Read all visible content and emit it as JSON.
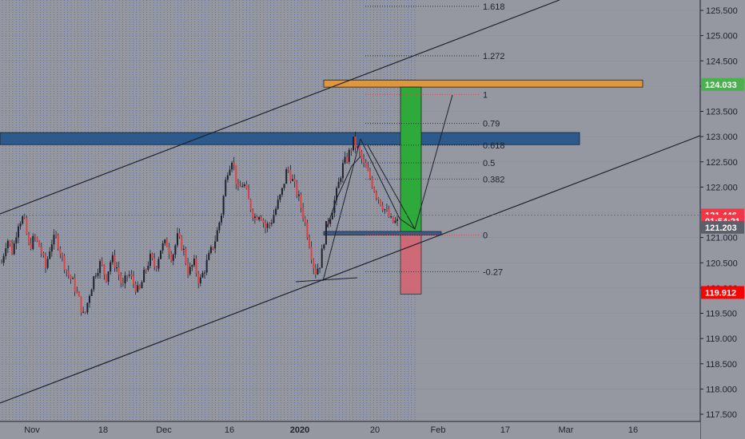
{
  "chart_data": {
    "type": "candlestick",
    "title": "",
    "xlabel": "",
    "ylabel": "",
    "ylim": [
      117.45,
      125.75
    ],
    "y_ticks": [
      "125.500",
      "125.000",
      "124.500",
      "124.000",
      "123.500",
      "123.000",
      "122.500",
      "122.000",
      "121.500",
      "121.000",
      "120.500",
      "120.000",
      "119.500",
      "119.000",
      "118.500",
      "118.000",
      "117.500"
    ],
    "x_ticks": [
      "Nov",
      "18",
      "Dec",
      "16",
      "2020",
      "20",
      "Feb",
      "17",
      "Mar",
      "16"
    ],
    "price_badges": [
      {
        "label": "124.033",
        "value": 124.033,
        "color": "#4caf50"
      },
      {
        "label": "121.446",
        "value": 121.446,
        "color": "#f23645"
      },
      {
        "label": "01:54:21",
        "value": 121.325,
        "color": "#f23645"
      },
      {
        "label": "121.203",
        "value": 121.203,
        "color": "#5d606b"
      },
      {
        "label": "119.912",
        "value": 119.912,
        "color": "#ff0000"
      }
    ],
    "fib_levels": [
      {
        "label": "1.618",
        "value": 125.58,
        "color": "#1e222d"
      },
      {
        "label": "1.272",
        "value": 124.6,
        "color": "#1e222d"
      },
      {
        "label": "1",
        "value": 123.83,
        "color": "#f23645"
      },
      {
        "label": "0.79",
        "value": 123.26,
        "color": "#1e222d"
      },
      {
        "label": "0.618",
        "value": 122.83,
        "color": "#1e222d"
      },
      {
        "label": "0.5",
        "value": 122.48,
        "color": "#1e222d"
      },
      {
        "label": "0.382",
        "value": 122.16,
        "color": "#1e222d"
      },
      {
        "label": "0",
        "value": 121.05,
        "color": "#f23645"
      },
      {
        "label": "-0.27",
        "value": 120.32,
        "color": "#1e222d"
      }
    ],
    "candles": {
      "start": 120.5,
      "path": [
        120.5,
        121.0,
        120.7,
        121.3,
        121.4,
        120.8,
        121.0,
        120.8,
        120.4,
        120.9,
        121.0,
        120.6,
        120.3,
        120.1,
        119.8,
        119.4,
        119.9,
        120.3,
        120.5,
        120.2,
        120.6,
        120.4,
        120.0,
        120.3,
        120.1,
        119.9,
        120.3,
        120.6,
        120.4,
        120.8,
        120.9,
        120.6,
        121.0,
        120.8,
        120.3,
        120.5,
        120.1,
        120.4,
        120.7,
        121.0,
        121.5,
        122.3,
        122.6,
        121.9,
        122.1,
        121.7,
        121.4,
        121.5,
        121.2,
        121.3,
        121.6,
        121.9,
        122.4,
        122.1,
        121.8,
        121.4,
        120.9,
        120.3,
        120.5,
        121.2,
        121.5,
        121.9,
        122.4,
        122.6,
        122.9,
        122.7,
        122.4,
        122.2,
        121.9,
        121.7,
        121.5,
        121.3,
        121.3
      ]
    },
    "zones": [
      {
        "kind": "resistance-zone",
        "top": 123.08,
        "bottom": 122.84,
        "color": "#2c5a8c"
      },
      {
        "kind": "supply-zone",
        "top": 124.12,
        "bottom": 123.98,
        "color": "#e0963a"
      },
      {
        "kind": "target-zone",
        "top": 123.98,
        "bottom": 121.1,
        "color": "#2eaa3a"
      },
      {
        "kind": "stop-zone",
        "top": 121.1,
        "bottom": 119.88,
        "color": "#d9636f"
      },
      {
        "kind": "entry-zone",
        "top": 121.12,
        "bottom": 121.05,
        "color": "#3d5a8a"
      }
    ],
    "current_price": 121.446,
    "grid": true,
    "legend": "none"
  }
}
